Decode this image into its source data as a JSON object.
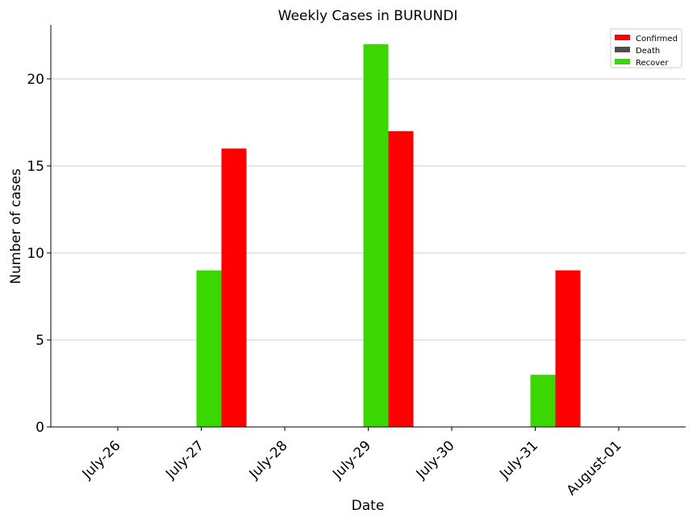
{
  "chart_data": {
    "type": "bar",
    "title": "Weekly Cases in BURUNDI",
    "xlabel": "Date",
    "ylabel": "Number of cases",
    "categories": [
      "July-26",
      "July-27",
      "July-28",
      "July-29",
      "July-30",
      "July-31",
      "August-01"
    ],
    "series": [
      {
        "name": "Confirmed",
        "color": "#ff0000",
        "values": [
          0,
          16,
          0,
          17,
          0,
          9,
          0
        ]
      },
      {
        "name": "Death",
        "color": "#4d4d4d",
        "values": [
          0,
          0,
          0,
          0,
          0,
          0,
          0
        ]
      },
      {
        "name": "Recover",
        "color": "#3ad700",
        "values": [
          0,
          9,
          0,
          22,
          0,
          3,
          0
        ]
      }
    ],
    "ylim": [
      0,
      23.1
    ],
    "yticks": [
      0,
      5,
      10,
      15,
      20
    ],
    "grid": "horizontal",
    "legend_position": "top-right"
  }
}
